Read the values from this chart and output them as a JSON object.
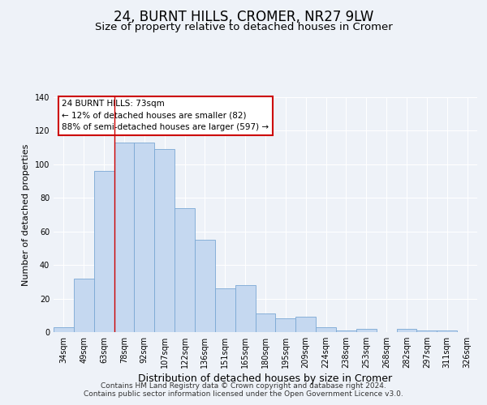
{
  "title": "24, BURNT HILLS, CROMER, NR27 9LW",
  "subtitle": "Size of property relative to detached houses in Cromer",
  "xlabel": "Distribution of detached houses by size in Cromer",
  "ylabel": "Number of detached properties",
  "categories": [
    "34sqm",
    "49sqm",
    "63sqm",
    "78sqm",
    "92sqm",
    "107sqm",
    "122sqm",
    "136sqm",
    "151sqm",
    "165sqm",
    "180sqm",
    "195sqm",
    "209sqm",
    "224sqm",
    "238sqm",
    "253sqm",
    "268sqm",
    "282sqm",
    "297sqm",
    "311sqm",
    "326sqm"
  ],
  "values": [
    3,
    32,
    96,
    113,
    113,
    109,
    74,
    55,
    26,
    28,
    11,
    8,
    9,
    3,
    1,
    2,
    0,
    2,
    1,
    1,
    0
  ],
  "bar_color": "#c5d8f0",
  "bar_edge_color": "#7aa8d4",
  "ylim": [
    0,
    140
  ],
  "yticks": [
    0,
    20,
    40,
    60,
    80,
    100,
    120,
    140
  ],
  "vline_x": 2.5,
  "vline_color": "#cc0000",
  "annotation_title": "24 BURNT HILLS: 73sqm",
  "annotation_line1": "← 12% of detached houses are smaller (82)",
  "annotation_line2": "88% of semi-detached houses are larger (597) →",
  "annotation_box_color": "#ffffff",
  "annotation_box_edge": "#cc0000",
  "footer1": "Contains HM Land Registry data © Crown copyright and database right 2024.",
  "footer2": "Contains public sector information licensed under the Open Government Licence v3.0.",
  "background_color": "#eef2f8",
  "plot_bg_color": "#eef2f8",
  "title_fontsize": 12,
  "subtitle_fontsize": 9.5,
  "xlabel_fontsize": 9,
  "ylabel_fontsize": 8,
  "tick_fontsize": 7,
  "footer_fontsize": 6.5,
  "annotation_fontsize": 7.5
}
